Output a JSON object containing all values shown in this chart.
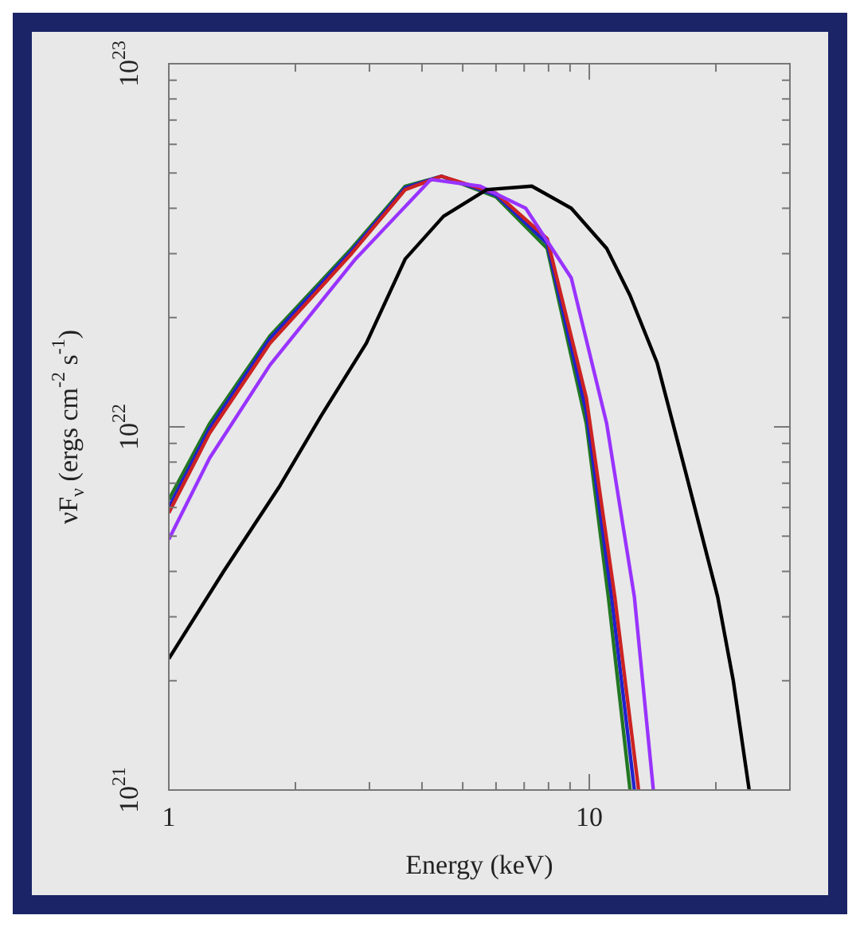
{
  "chart_data": {
    "type": "line",
    "xlabel": "Energy (keV)",
    "ylabel": "νF$_{ν}$ (ergs cm$^{-2}$ s$^{-1}$)",
    "log": "xy",
    "marker": "none",
    "line_style": "solid",
    "xlim": [
      1,
      30
    ],
    "xticks": [
      1,
      {
        "value": 2,
        "label": null
      },
      {
        "value": 3,
        "label": null
      },
      {
        "value": 4,
        "label": null
      },
      {
        "value": 5,
        "label": null
      },
      {
        "value": 6,
        "label": null
      },
      {
        "value": 7,
        "label": null
      },
      {
        "value": 8,
        "label": null
      },
      {
        "value": 9,
        "label": null
      },
      10,
      {
        "value": 20,
        "label": null
      }
    ],
    "ylim": [
      1e+21,
      1e+23
    ],
    "yticks": [
      {
        "value": 1e+21,
        "label": "10$^{21}$"
      },
      {
        "value": 2e+21,
        "label": null
      },
      {
        "value": 3e+21,
        "label": null
      },
      {
        "value": 4e+21,
        "label": null
      },
      {
        "value": 5e+21,
        "label": null
      },
      {
        "value": 6e+21,
        "label": null
      },
      {
        "value": 7e+21,
        "label": null
      },
      {
        "value": 8e+21,
        "label": null
      },
      {
        "value": 9e+21,
        "label": null
      },
      {
        "value": 1e+22,
        "label": "10$^{22}$"
      },
      {
        "value": 2e+22,
        "label": null
      },
      {
        "value": 3e+22,
        "label": null
      },
      {
        "value": 4e+22,
        "label": null
      },
      {
        "value": 5e+22,
        "label": null
      },
      {
        "value": 6e+22,
        "label": null
      },
      {
        "value": 7e+22,
        "label": null
      },
      {
        "value": 8e+22,
        "label": null
      },
      {
        "value": 9e+22,
        "label": null
      },
      {
        "value": 1e+23,
        "label": "10$^{23}$"
      }
    ],
    "series": [
      {
        "color": "#000000",
        "x": [
          1,
          1.35,
          1.84,
          2.3,
          2.95,
          3.65,
          4.5,
          5.7,
          7.3,
          9.06,
          11.0,
          12.5,
          14.5,
          17,
          20.2,
          22,
          24
        ],
        "values": [
          2.3e+21,
          4e+21,
          6.9e+21,
          1.07e+22,
          1.7e+22,
          2.9e+22,
          3.8e+22,
          4.5e+22,
          4.6e+22,
          4e+22,
          3.1e+22,
          2.3e+22,
          1.5e+22,
          7.4e+21,
          3.4e+21,
          2e+21,
          1e+21
        ]
      },
      {
        "color": "#9933ff",
        "x": [
          1,
          1.25,
          1.74,
          2.78,
          4.2,
          5.5,
          7.06,
          9.06,
          11.0,
          12.8,
          14.2
        ],
        "values": [
          4.9e+21,
          8.2e+21,
          1.48e+22,
          2.9e+22,
          4.8e+22,
          4.6e+22,
          4e+22,
          2.57e+22,
          1.02e+22,
          3.4e+21,
          1e+21
        ]
      },
      {
        "color": "#cc2222",
        "x": [
          1,
          1.25,
          1.74,
          2.72,
          3.65,
          4.45,
          6.0,
          7.94,
          9.84,
          11.5,
          13.1
        ],
        "values": [
          5.8e+21,
          9.6e+21,
          1.7e+22,
          3e+22,
          4.5e+22,
          4.9e+22,
          4.4e+22,
          3.3e+22,
          1.2e+22,
          3.4e+21,
          1e+21
        ]
      },
      {
        "color": "#2222cc",
        "x": [
          1,
          1.25,
          1.74,
          2.72,
          3.65,
          4.45,
          6.0,
          7.94,
          9.84,
          11.3,
          12.8
        ],
        "values": [
          6e+21,
          9.9e+21,
          1.75e+22,
          3.05e+22,
          4.55e+22,
          4.9e+22,
          4.35e+22,
          3.2e+22,
          1.1e+22,
          3.4e+21,
          1e+21
        ]
      },
      {
        "color": "#227722",
        "x": [
          1,
          1.25,
          1.74,
          2.72,
          3.65,
          4.45,
          6.0,
          7.94,
          9.84,
          11.1,
          12.5
        ],
        "values": [
          6.3e+21,
          1.02e+22,
          1.78e+22,
          3.1e+22,
          4.6e+22,
          4.9e+22,
          4.3e+22,
          3.1e+22,
          1.02e+22,
          3.4e+21,
          1e+21
        ]
      }
    ]
  }
}
